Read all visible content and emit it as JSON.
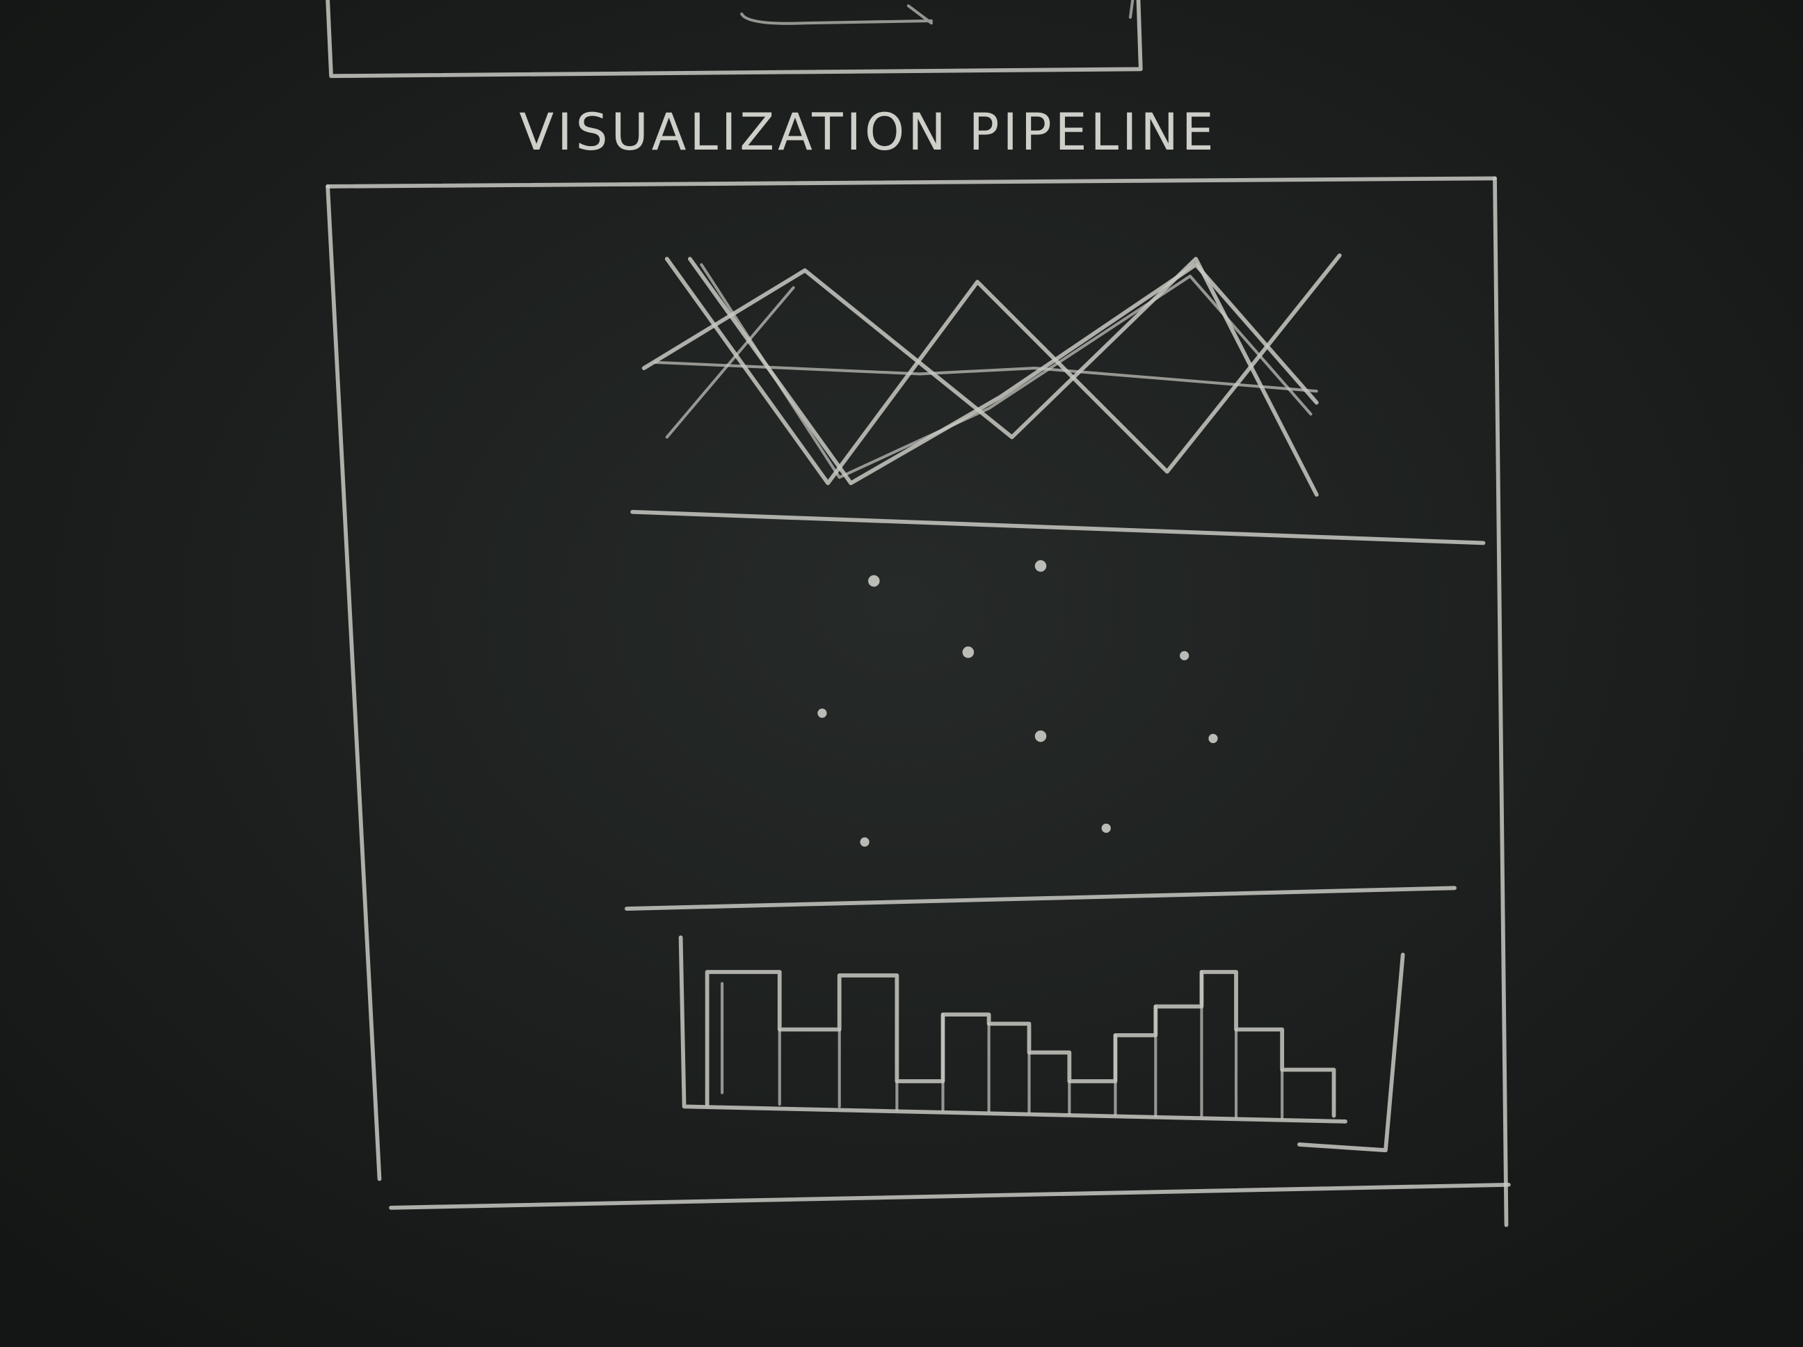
{
  "title": "VISUALIZATION PIPELINE"
}
